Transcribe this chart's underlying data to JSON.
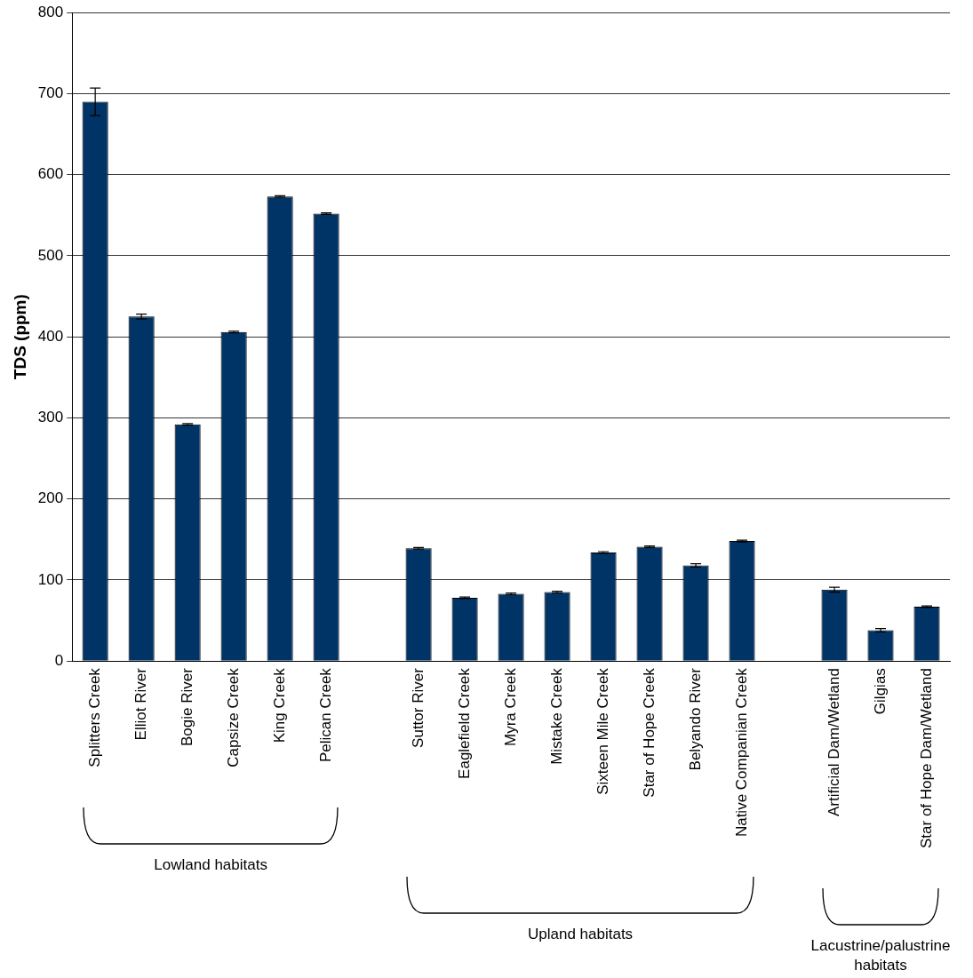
{
  "chart_data": {
    "type": "bar",
    "ylabel": "TDS (ppm)",
    "categories": [
      "Splitters Creek",
      "Elliot River",
      "Bogie River",
      "Capsize Creek",
      "King Creek",
      "Pelican Creek",
      null,
      "Suttor River",
      "Eaglefield Creek",
      "Myra Creek",
      "Mistake Creek",
      "Sixteen Mile Creek",
      "Star of Hope Creek",
      "Belyando River",
      "Native Companian Creek",
      null,
      "Artificial Dam/Wetland",
      "Gilgias",
      "Star of Hope Dam/Wetland"
    ],
    "values": [
      690,
      425,
      292,
      406,
      573,
      552,
      null,
      139,
      78,
      83,
      85,
      134,
      141,
      118,
      148,
      null,
      88,
      38,
      67
    ],
    "errors": [
      17,
      3,
      1,
      1,
      1,
      1,
      null,
      1,
      1,
      1,
      1,
      1,
      1,
      2,
      1,
      null,
      3,
      2,
      1
    ],
    "color": "#003366",
    "ylim": [
      0,
      800
    ],
    "yticks": [
      0,
      100,
      200,
      300,
      400,
      500,
      600,
      700,
      800
    ],
    "grid": "y",
    "annotations": [
      "Lowland habitats",
      "Upland habitats",
      "Lacustrine/palustrine habitats"
    ]
  }
}
